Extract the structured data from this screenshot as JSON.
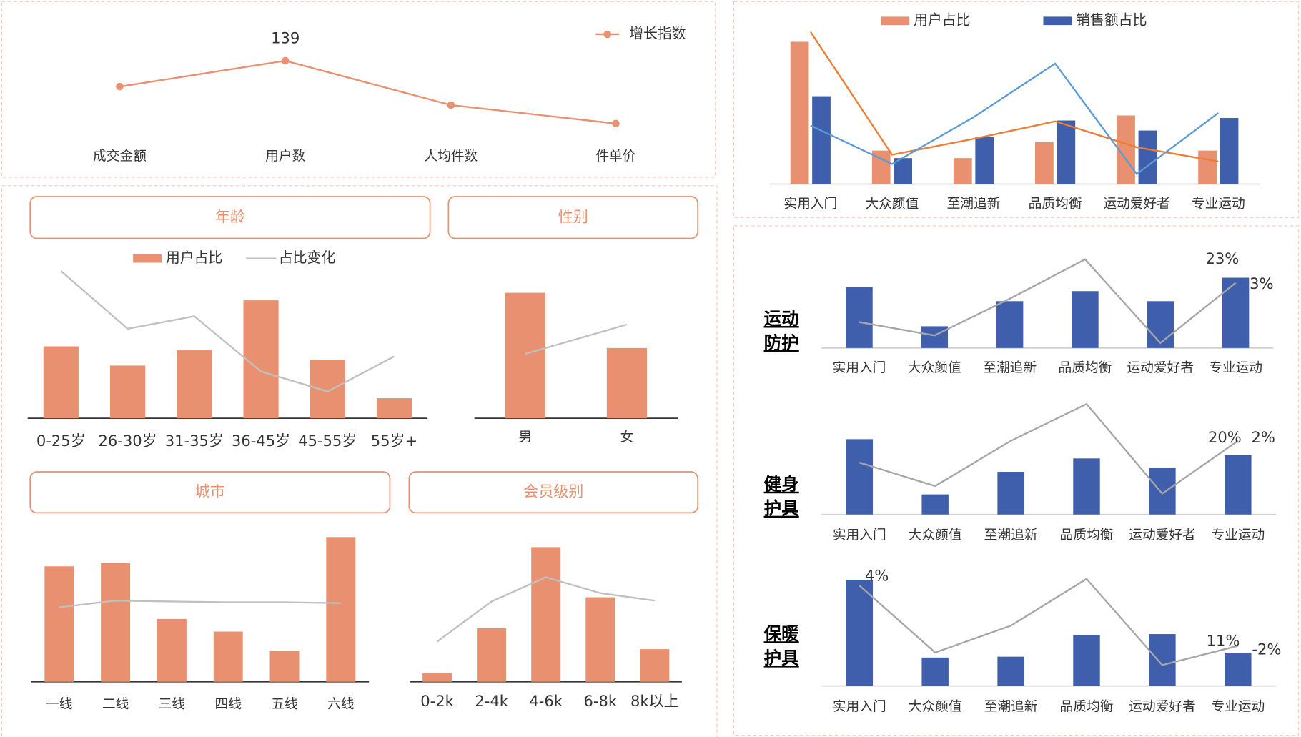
{
  "chart_data": [
    {
      "type": "line",
      "categories": [
        "成交金额",
        "用户数",
        "人均件数",
        "件单价"
      ],
      "series": [
        {
          "name": "增长指数",
          "color": "#e8906f",
          "values": [
            118,
            139,
            103,
            88
          ],
          "value_labels": [
            null,
            "139",
            null,
            null
          ]
        }
      ]
    },
    {
      "type": "bar_line",
      "categories": [
        "实用入门",
        "大众颜值",
        "至潮追新",
        "品质均衡",
        "运动爱好者",
        "专业运动"
      ],
      "series": [
        {
          "name": "用户占比",
          "kind": "bar",
          "color": "#e8906f",
          "values": [
            170,
            40,
            31,
            50,
            82,
            40
          ]
        },
        {
          "name": "销售额占比",
          "kind": "bar",
          "color": "#3f5fad",
          "values": [
            105,
            31,
            56,
            76,
            64,
            79
          ]
        },
        {
          "kind": "line",
          "color": "#ed7d31",
          "values": [
            182,
            35,
            54,
            75,
            44,
            27
          ]
        },
        {
          "kind": "line",
          "color": "#5b9bd5",
          "values": [
            70,
            24,
            80,
            144,
            12,
            85
          ]
        }
      ]
    },
    {
      "type": "bar_line",
      "title": "年龄",
      "categories": [
        "0-25岁",
        "26-30岁",
        "31-35岁",
        "36-45岁",
        "45-55岁",
        "55岁+"
      ],
      "series": [
        {
          "name": "用户占比",
          "kind": "bar",
          "color": "#e8906f",
          "values": [
            86,
            63,
            82,
            141,
            70,
            24
          ]
        },
        {
          "name": "占比变化",
          "kind": "line",
          "color": "#c0c0c0",
          "values": [
            176,
            107,
            122,
            56,
            32,
            74
          ]
        }
      ]
    },
    {
      "type": "bar_line",
      "title": "性别",
      "categories": [
        "男",
        "女"
      ],
      "series": [
        {
          "kind": "bar",
          "color": "#e8906f",
          "values": [
            150,
            84
          ]
        },
        {
          "kind": "line",
          "color": "#c0c0c0",
          "values": [
            77,
            112
          ]
        }
      ]
    },
    {
      "type": "bar_line",
      "title": "城市",
      "categories": [
        "一线",
        "二线",
        "三线",
        "四线",
        "五线",
        "六线"
      ],
      "series": [
        {
          "kind": "bar",
          "color": "#e8906f",
          "values": [
            138,
            142,
            75,
            60,
            37,
            173
          ]
        },
        {
          "kind": "line",
          "color": "#c0c0c0",
          "values": [
            89,
            97,
            96,
            95,
            95,
            94
          ]
        }
      ]
    },
    {
      "type": "bar_line",
      "title": "会员级别",
      "categories": [
        "0-2k",
        "2-4k",
        "4-6k",
        "6-8k",
        "8k以上"
      ],
      "series": [
        {
          "kind": "bar",
          "color": "#e8906f",
          "values": [
            10,
            64,
            161,
            101,
            39
          ]
        },
        {
          "kind": "line",
          "color": "#c0c0c0",
          "values": [
            48,
            96,
            125,
            106,
            97
          ]
        }
      ]
    },
    {
      "type": "bar_line",
      "title_lines": [
        "运动",
        "防护"
      ],
      "categories": [
        "实用入门",
        "大众颜值",
        "至潮追新",
        "品质均衡",
        "运动爱好者",
        "专业运动"
      ],
      "annotations": [
        "23%",
        "3%"
      ],
      "series": [
        {
          "kind": "bar",
          "color": "#3f5fad",
          "values": [
            73,
            26,
            56,
            68,
            56,
            84
          ]
        },
        {
          "kind": "line",
          "color": "#a6a6a6",
          "values": [
            31,
            15,
            59,
            106,
            6,
            78
          ]
        }
      ]
    },
    {
      "type": "bar_line",
      "title_lines": [
        "健身",
        "护具"
      ],
      "categories": [
        "实用入门",
        "大众颜值",
        "至潮追新",
        "品质均衡",
        "运动爱好者",
        "专业运动"
      ],
      "annotations": [
        "20%",
        "2%"
      ],
      "series": [
        {
          "kind": "bar",
          "color": "#3f5fad",
          "values": [
            90,
            24,
            51,
            67,
            56,
            71
          ]
        },
        {
          "kind": "line",
          "color": "#a6a6a6",
          "values": [
            62,
            34,
            88,
            132,
            25,
            88
          ]
        }
      ]
    },
    {
      "type": "bar_line",
      "title_lines": [
        "保暖",
        "护具"
      ],
      "categories": [
        "实用入门",
        "大众颜值",
        "至潮追新",
        "品质均衡",
        "运动爱好者",
        "专业运动"
      ],
      "annotations": [
        "4%",
        "11%",
        "-2%"
      ],
      "series": [
        {
          "kind": "bar",
          "color": "#3f5fad",
          "values": [
            127,
            34,
            35,
            61,
            62,
            39
          ]
        },
        {
          "kind": "line",
          "color": "#a6a6a6",
          "values": [
            120,
            40,
            72,
            128,
            25,
            48
          ]
        }
      ]
    }
  ]
}
